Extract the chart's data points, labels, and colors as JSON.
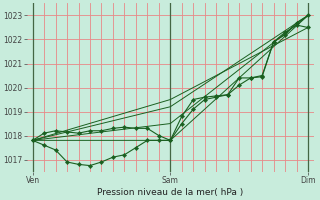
{
  "bg_color": "#c8ecdc",
  "grid_color": "#e88888",
  "line_color": "#1a6020",
  "ylim": [
    1016.5,
    1023.5
  ],
  "yticks": [
    1017,
    1018,
    1019,
    1020,
    1021,
    1022,
    1023
  ],
  "xtick_labels": [
    "Ven",
    "Sam",
    "Dim"
  ],
  "xtick_pos": [
    0,
    48,
    96
  ],
  "xlabel": "Pression niveau de la mer( hPa )",
  "series": [
    {
      "x": [
        0,
        4,
        8,
        12,
        16,
        20,
        24,
        28,
        32,
        36,
        40,
        44,
        48,
        52,
        56,
        60,
        64,
        68,
        72,
        76,
        80,
        84,
        88,
        92,
        96
      ],
      "y": [
        1017.8,
        1017.6,
        1017.4,
        1016.9,
        1016.8,
        1016.75,
        1016.9,
        1017.1,
        1017.2,
        1017.5,
        1017.8,
        1017.8,
        1017.8,
        1018.5,
        1019.1,
        1019.5,
        1019.6,
        1019.7,
        1020.1,
        1020.4,
        1020.5,
        1021.9,
        1022.2,
        1022.7,
        1023.0
      ],
      "marker": true
    },
    {
      "x": [
        0,
        4,
        8,
        12,
        16,
        20,
        24,
        28,
        32,
        36,
        40,
        44,
        48,
        52,
        56,
        60,
        64,
        68,
        72,
        76,
        80,
        84,
        88,
        92,
        96
      ],
      "y": [
        1017.8,
        1018.1,
        1018.2,
        1018.15,
        1018.1,
        1018.2,
        1018.2,
        1018.3,
        1018.35,
        1018.3,
        1018.3,
        1018.0,
        1017.8,
        1018.8,
        1019.5,
        1019.6,
        1019.65,
        1019.7,
        1020.4,
        1020.4,
        1020.45,
        1021.9,
        1022.3,
        1022.6,
        1022.5
      ],
      "marker": true
    },
    {
      "x": [
        0,
        48,
        96
      ],
      "y": [
        1017.8,
        1017.8,
        1023.0
      ],
      "marker": false
    },
    {
      "x": [
        0,
        48,
        96
      ],
      "y": [
        1017.8,
        1019.5,
        1022.5
      ],
      "marker": false
    },
    {
      "x": [
        0,
        48,
        96
      ],
      "y": [
        1017.8,
        1019.2,
        1023.0
      ],
      "marker": false
    },
    {
      "x": [
        0,
        48,
        96
      ],
      "y": [
        1017.8,
        1018.5,
        1023.0
      ],
      "marker": false
    }
  ]
}
